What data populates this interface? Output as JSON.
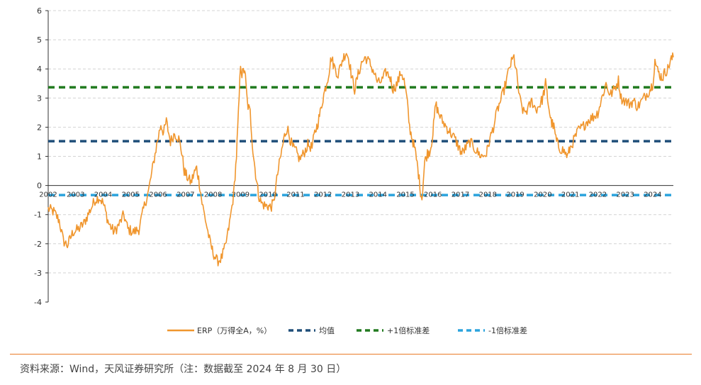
{
  "chart_data": {
    "type": "line",
    "ylim": [
      -4,
      6
    ],
    "yticks": [
      -4,
      -3,
      -2,
      -1,
      0,
      1,
      2,
      3,
      4,
      5,
      6
    ],
    "x_range": [
      2002.0,
      2024.75
    ],
    "x_tick_labels": [
      "2002",
      "2003",
      "2004",
      "2005",
      "2006",
      "2007",
      "2008",
      "2009",
      "2010",
      "2011",
      "2012",
      "2013",
      "2014",
      "2015",
      "2016",
      "2017",
      "2018",
      "2019",
      "2020",
      "2021",
      "2022",
      "2023",
      "2024"
    ],
    "grid": "horizontal-dashed",
    "legend_position": "bottom",
    "series": [
      {
        "name": "ERP（万得全A，%）",
        "color": "#F0962E",
        "style": "solid",
        "points": [
          [
            2002.0,
            -0.8
          ],
          [
            2002.2,
            -0.9
          ],
          [
            2002.4,
            -1.2
          ],
          [
            2002.55,
            -1.9
          ],
          [
            2002.7,
            -2.05
          ],
          [
            2002.9,
            -1.6
          ],
          [
            2003.1,
            -1.5
          ],
          [
            2003.3,
            -1.3
          ],
          [
            2003.5,
            -0.9
          ],
          [
            2003.7,
            -0.5
          ],
          [
            2003.85,
            -0.4
          ],
          [
            2004.0,
            -0.6
          ],
          [
            2004.2,
            -1.3
          ],
          [
            2004.4,
            -1.6
          ],
          [
            2004.6,
            -1.3
          ],
          [
            2004.75,
            -1.0
          ],
          [
            2004.9,
            -1.5
          ],
          [
            2005.1,
            -1.6
          ],
          [
            2005.3,
            -1.5
          ],
          [
            2005.5,
            -0.7
          ],
          [
            2005.65,
            -0.2
          ],
          [
            2005.8,
            0.6
          ],
          [
            2005.95,
            1.4
          ],
          [
            2006.1,
            2.1
          ],
          [
            2006.2,
            1.8
          ],
          [
            2006.3,
            2.2
          ],
          [
            2006.45,
            1.5
          ],
          [
            2006.6,
            1.8
          ],
          [
            2006.75,
            1.6
          ],
          [
            2006.85,
            1.2
          ],
          [
            2006.95,
            0.5
          ],
          [
            2007.05,
            0.3
          ],
          [
            2007.2,
            0.1
          ],
          [
            2007.3,
            0.4
          ],
          [
            2007.4,
            0.6
          ],
          [
            2007.5,
            0.1
          ],
          [
            2007.6,
            -0.6
          ],
          [
            2007.75,
            -1.3
          ],
          [
            2007.9,
            -2.0
          ],
          [
            2008.0,
            -2.3
          ],
          [
            2008.15,
            -2.6
          ],
          [
            2008.3,
            -2.5
          ],
          [
            2008.45,
            -2.1
          ],
          [
            2008.6,
            -1.3
          ],
          [
            2008.75,
            -0.3
          ],
          [
            2008.85,
            1.0
          ],
          [
            2008.95,
            3.0
          ],
          [
            2009.0,
            4.2
          ],
          [
            2009.05,
            3.8
          ],
          [
            2009.15,
            4.0
          ],
          [
            2009.25,
            2.8
          ],
          [
            2009.35,
            2.5
          ],
          [
            2009.45,
            1.2
          ],
          [
            2009.55,
            0.4
          ],
          [
            2009.65,
            -0.3
          ],
          [
            2009.75,
            -0.6
          ],
          [
            2009.9,
            -0.7
          ],
          [
            2010.0,
            -0.7
          ],
          [
            2010.1,
            -0.75
          ],
          [
            2010.2,
            -0.6
          ],
          [
            2010.35,
            0.4
          ],
          [
            2010.5,
            1.2
          ],
          [
            2010.6,
            1.7
          ],
          [
            2010.7,
            2.0
          ],
          [
            2010.8,
            1.6
          ],
          [
            2010.9,
            1.3
          ],
          [
            2011.0,
            1.2
          ],
          [
            2011.15,
            0.9
          ],
          [
            2011.3,
            1.1
          ],
          [
            2011.45,
            1.4
          ],
          [
            2011.6,
            1.3
          ],
          [
            2011.7,
            1.8
          ],
          [
            2011.8,
            2.1
          ],
          [
            2011.9,
            2.5
          ],
          [
            2012.0,
            3.0
          ],
          [
            2012.1,
            3.4
          ],
          [
            2012.2,
            3.8
          ],
          [
            2012.3,
            4.4
          ],
          [
            2012.4,
            4.1
          ],
          [
            2012.55,
            3.8
          ],
          [
            2012.7,
            4.3
          ],
          [
            2012.85,
            4.6
          ],
          [
            2012.95,
            4.3
          ],
          [
            2013.05,
            3.7
          ],
          [
            2013.15,
            3.3
          ],
          [
            2013.25,
            3.7
          ],
          [
            2013.4,
            4.2
          ],
          [
            2013.55,
            4.4
          ],
          [
            2013.7,
            4.2
          ],
          [
            2013.85,
            3.9
          ],
          [
            2014.0,
            3.5
          ],
          [
            2014.15,
            3.6
          ],
          [
            2014.3,
            3.9
          ],
          [
            2014.45,
            3.7
          ],
          [
            2014.55,
            3.3
          ],
          [
            2014.7,
            3.5
          ],
          [
            2014.85,
            3.9
          ],
          [
            2014.95,
            3.6
          ],
          [
            2015.05,
            3.0
          ],
          [
            2015.15,
            2.0
          ],
          [
            2015.25,
            1.6
          ],
          [
            2015.35,
            1.2
          ],
          [
            2015.45,
            0.6
          ],
          [
            2015.55,
            -0.2
          ],
          [
            2015.6,
            -0.45
          ],
          [
            2015.7,
            0.8
          ],
          [
            2015.8,
            1.1
          ],
          [
            2015.9,
            1.2
          ],
          [
            2016.0,
            1.8
          ],
          [
            2016.1,
            2.8
          ],
          [
            2016.2,
            2.5
          ],
          [
            2016.35,
            2.2
          ],
          [
            2016.5,
            2.0
          ],
          [
            2016.65,
            1.8
          ],
          [
            2016.8,
            1.6
          ],
          [
            2016.95,
            1.3
          ],
          [
            2017.05,
            1.1
          ],
          [
            2017.2,
            1.3
          ],
          [
            2017.35,
            1.5
          ],
          [
            2017.5,
            1.3
          ],
          [
            2017.65,
            1.1
          ],
          [
            2017.8,
            1.0
          ],
          [
            2017.95,
            1.1
          ],
          [
            2018.05,
            1.5
          ],
          [
            2018.2,
            2.0
          ],
          [
            2018.35,
            2.6
          ],
          [
            2018.5,
            3.0
          ],
          [
            2018.65,
            3.5
          ],
          [
            2018.8,
            4.1
          ],
          [
            2018.95,
            4.4
          ],
          [
            2019.05,
            3.8
          ],
          [
            2019.15,
            3.0
          ],
          [
            2019.3,
            2.5
          ],
          [
            2019.45,
            2.6
          ],
          [
            2019.6,
            2.9
          ],
          [
            2019.75,
            2.6
          ],
          [
            2019.9,
            2.8
          ],
          [
            2020.0,
            3.0
          ],
          [
            2020.1,
            3.5
          ],
          [
            2020.2,
            2.8
          ],
          [
            2020.3,
            2.2
          ],
          [
            2020.4,
            2.0
          ],
          [
            2020.5,
            1.5
          ],
          [
            2020.6,
            1.3
          ],
          [
            2020.75,
            1.2
          ],
          [
            2020.9,
            1.0
          ],
          [
            2021.0,
            1.3
          ],
          [
            2021.15,
            1.6
          ],
          [
            2021.3,
            1.9
          ],
          [
            2021.45,
            2.0
          ],
          [
            2021.6,
            2.2
          ],
          [
            2021.75,
            2.3
          ],
          [
            2021.9,
            2.4
          ],
          [
            2022.0,
            2.5
          ],
          [
            2022.15,
            3.0
          ],
          [
            2022.3,
            3.5
          ],
          [
            2022.45,
            3.1
          ],
          [
            2022.6,
            3.3
          ],
          [
            2022.75,
            3.6
          ],
          [
            2022.85,
            3.0
          ],
          [
            2023.0,
            2.9
          ],
          [
            2023.15,
            2.8
          ],
          [
            2023.3,
            2.9
          ],
          [
            2023.45,
            2.7
          ],
          [
            2023.6,
            2.9
          ],
          [
            2023.75,
            3.1
          ],
          [
            2023.9,
            3.3
          ],
          [
            2024.0,
            3.5
          ],
          [
            2024.08,
            4.3
          ],
          [
            2024.15,
            4.0
          ],
          [
            2024.25,
            3.8
          ],
          [
            2024.35,
            3.7
          ],
          [
            2024.45,
            3.9
          ],
          [
            2024.55,
            4.0
          ],
          [
            2024.65,
            4.3
          ],
          [
            2024.75,
            4.4
          ]
        ]
      },
      {
        "name": "均值",
        "value": 1.52,
        "color": "#1F4E79",
        "style": "dashed"
      },
      {
        "name": "+1倍标准差",
        "value": 3.37,
        "color": "#217A1F",
        "style": "dashed"
      },
      {
        "name": "-1倍标准差",
        "value": -0.33,
        "color": "#2BA3DD",
        "style": "dashed"
      }
    ]
  },
  "source": "资料来源：Wind，天风证券研究所（注：数据截至 2024 年 8 月 30 日）"
}
